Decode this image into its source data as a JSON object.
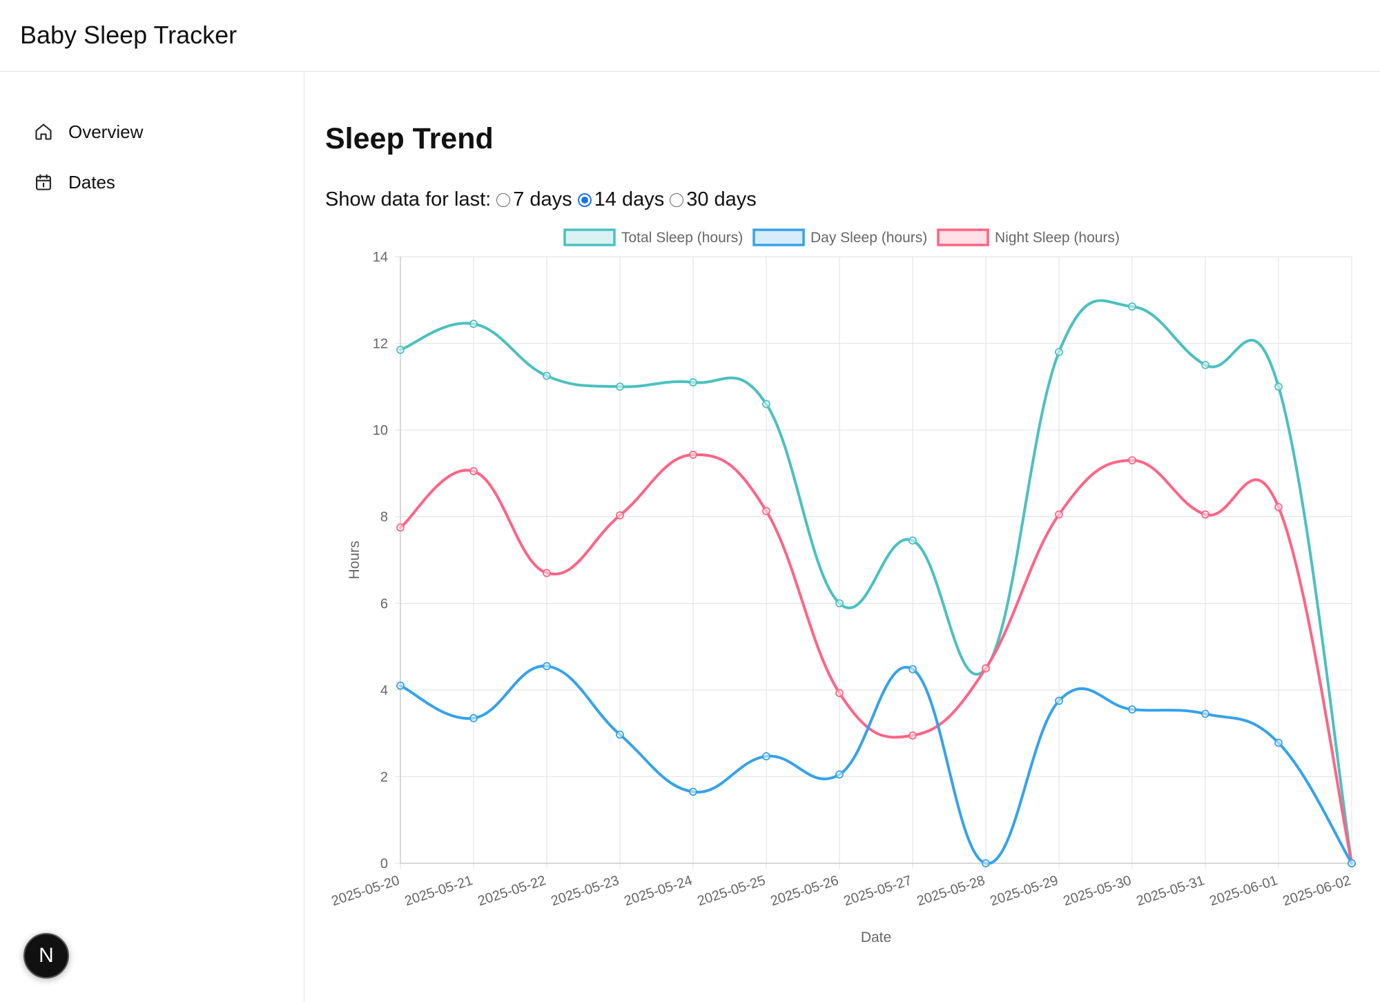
{
  "app": {
    "title": "Baby Sleep Tracker"
  },
  "sidebar": {
    "items": [
      {
        "label": "Overview",
        "icon": "home-icon"
      },
      {
        "label": "Dates",
        "icon": "calendar-icon"
      }
    ]
  },
  "main": {
    "title": "Sleep Trend",
    "range": {
      "label": "Show data for last:",
      "options": [
        "7 days",
        "14 days",
        "30 days"
      ],
      "selected": "14 days"
    }
  },
  "devtools": {
    "label": "N"
  },
  "colors": {
    "total": "#4bc0c0",
    "day": "#36a2eb",
    "night": "#ff6384",
    "grid": "#e5e5e5",
    "axis_text": "#666666"
  },
  "chart_data": {
    "type": "line",
    "title": "",
    "xlabel": "Date",
    "ylabel": "Hours",
    "ylim": [
      0,
      14
    ],
    "yticks": [
      0,
      2,
      4,
      6,
      8,
      10,
      12,
      14
    ],
    "grid": true,
    "legend_position": "top",
    "x": [
      "2025-05-20",
      "2025-05-21",
      "2025-05-22",
      "2025-05-23",
      "2025-05-24",
      "2025-05-25",
      "2025-05-26",
      "2025-05-27",
      "2025-05-28",
      "2025-05-29",
      "2025-05-30",
      "2025-05-31",
      "2025-06-01",
      "2025-06-02"
    ],
    "series": [
      {
        "name": "Total Sleep (hours)",
        "color": "#4bc0c0",
        "values": [
          11.85,
          12.45,
          11.25,
          11.0,
          11.1,
          10.6,
          6.0,
          7.45,
          4.5,
          11.8,
          12.85,
          11.5,
          11.0,
          0
        ]
      },
      {
        "name": "Day Sleep (hours)",
        "color": "#36a2eb",
        "values": [
          4.1,
          3.35,
          4.55,
          2.97,
          1.65,
          2.47,
          2.05,
          4.48,
          0,
          3.75,
          3.55,
          3.45,
          2.78,
          0
        ]
      },
      {
        "name": "Night Sleep (hours)",
        "color": "#ff6384",
        "values": [
          7.75,
          9.05,
          6.7,
          8.03,
          9.43,
          8.13,
          3.93,
          2.95,
          4.5,
          8.05,
          9.3,
          8.05,
          8.22,
          0
        ]
      }
    ]
  }
}
